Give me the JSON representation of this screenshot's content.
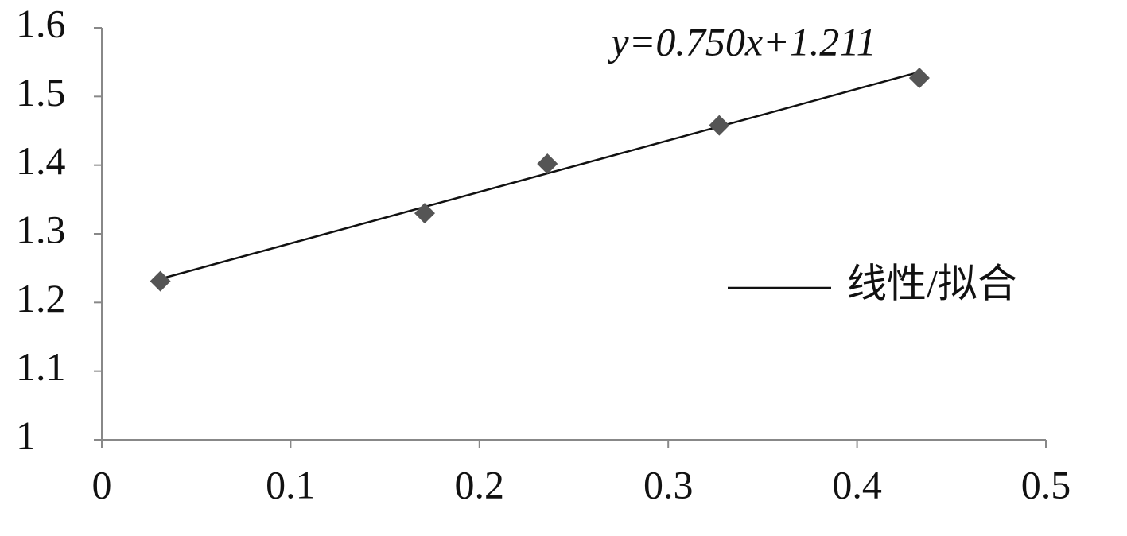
{
  "chart_data": {
    "type": "scatter",
    "x": [
      0.031,
      0.171,
      0.236,
      0.327,
      0.433
    ],
    "values": [
      1.231,
      1.33,
      1.402,
      1.458,
      1.527
    ],
    "color": "#555555",
    "xlim": [
      0,
      0.5
    ],
    "xticks": [
      0,
      0.1,
      0.2,
      0.3,
      0.4,
      0.5
    ],
    "ylim": [
      1,
      1.6
    ],
    "yticks": [
      1,
      1.1,
      1.2,
      1.3,
      1.4,
      1.5,
      1.6
    ],
    "trendline": {
      "slope": 0.75,
      "intercept": 1.211,
      "color": "#111111"
    },
    "annotation": "y=0.750x+1.211",
    "legend": {
      "label": "线性/拟合",
      "position": "right"
    },
    "grid": false
  }
}
